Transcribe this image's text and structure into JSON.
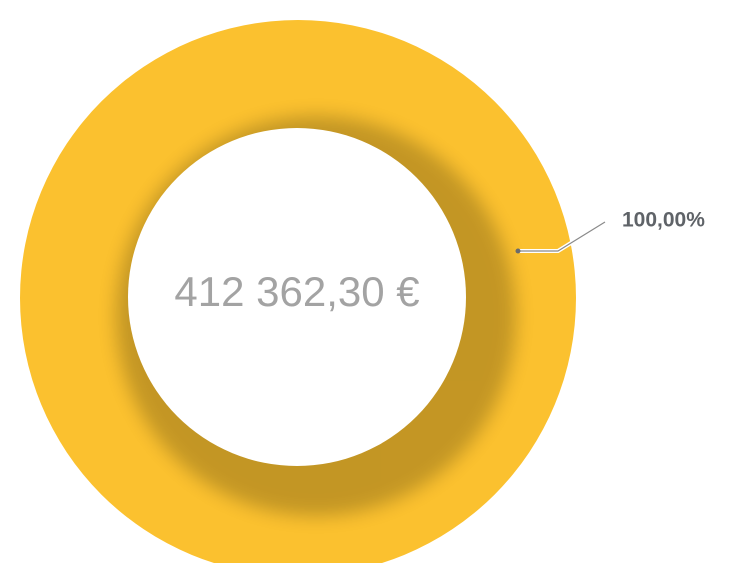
{
  "chart_data": {
    "type": "pie",
    "donut": true,
    "center_label": "412 362,30 €",
    "values": [
      100
    ],
    "value_labels": [
      "100,00%"
    ],
    "colors": [
      "#fbc12f"
    ]
  }
}
